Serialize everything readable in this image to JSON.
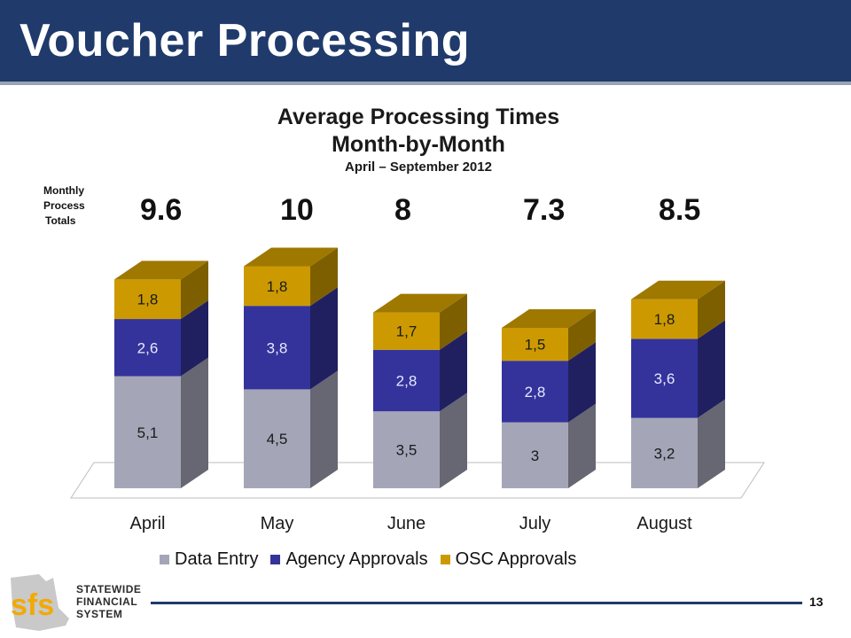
{
  "header": {
    "title": "Voucher Processing"
  },
  "chart_data": {
    "type": "bar",
    "stacked": true,
    "title": "Average Processing Times",
    "subtitle": "Month-by-Month",
    "date_range": "April – September 2012",
    "categories": [
      "April",
      "May",
      "June",
      "July",
      "August"
    ],
    "series": [
      {
        "name": "Data Entry",
        "values": [
          5.1,
          4.5,
          3.5,
          3.0,
          3.2
        ],
        "labels": [
          "5,1",
          "4,5",
          "3,5",
          "3",
          "3,2"
        ],
        "color": "#a4a6b8"
      },
      {
        "name": "Agency Approvals",
        "values": [
          2.6,
          3.8,
          2.8,
          2.8,
          3.6
        ],
        "labels": [
          "2,6",
          "3,8",
          "2,8",
          "2,8",
          "3,6"
        ],
        "color": "#33339b"
      },
      {
        "name": "OSC Approvals",
        "values": [
          1.8,
          1.8,
          1.7,
          1.5,
          1.8
        ],
        "labels": [
          "1,8",
          "1,8",
          "1,7",
          "1,5",
          "1,8"
        ],
        "color": "#cc9a00"
      }
    ],
    "totals_label": [
      "Monthly",
      "Process",
      "Totals"
    ],
    "totals": [
      "9.6",
      "10",
      "8",
      "7.3",
      "8.5"
    ],
    "legend_position": "bottom",
    "grid": false
  },
  "footer": {
    "page_number": "13",
    "logo_letters": "sfs",
    "logo_lines": [
      "STATEWIDE",
      "FINANCIAL",
      "SYSTEM"
    ]
  }
}
